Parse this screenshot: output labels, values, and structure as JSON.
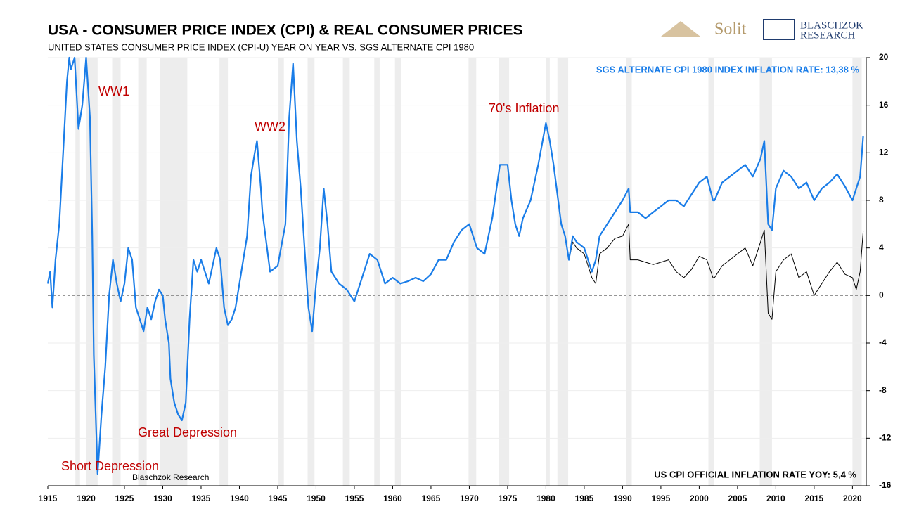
{
  "chart_data": {
    "type": "line",
    "title": "USA - CONSUMER PRICE INDEX (CPI) & REAL CONSUMER PRICES",
    "subtitle": "UNITED STATES CONSUMER PRICE INDEX (CPI-U) YEAR ON YEAR VS. SGS ALTERNATE CPI 1980",
    "source": "Blaschzok Research",
    "logo_texts": [
      "Solit",
      "BLASCHZOK",
      "RESEARCH"
    ],
    "annotations": [
      "WW1",
      "WW2",
      "70's Inflation",
      "Great Depression",
      "Short Depression"
    ],
    "xlim": [
      1915,
      2021.8
    ],
    "xticks": [
      1915,
      1920,
      1925,
      1930,
      1935,
      1940,
      1945,
      1950,
      1955,
      1960,
      1965,
      1970,
      1975,
      1980,
      1985,
      1990,
      1995,
      2000,
      2005,
      2010,
      2015,
      2020
    ],
    "ylim": [
      -16,
      20
    ],
    "yticks": [
      -16,
      -12,
      -8,
      -4,
      0,
      4,
      8,
      12,
      16,
      20
    ],
    "grid": true,
    "recessions": [
      [
        1918.6,
        1919.2
      ],
      [
        1920.0,
        1921.5
      ],
      [
        1923.4,
        1924.5
      ],
      [
        1926.8,
        1927.9
      ],
      [
        1929.6,
        1933.2
      ],
      [
        1937.4,
        1938.5
      ],
      [
        1945.1,
        1945.8
      ],
      [
        1948.9,
        1949.8
      ],
      [
        1953.5,
        1954.4
      ],
      [
        1957.6,
        1958.3
      ],
      [
        1960.3,
        1961.1
      ],
      [
        1969.9,
        1970.9
      ],
      [
        1973.9,
        1975.2
      ],
      [
        1980.0,
        1980.5
      ],
      [
        1981.5,
        1982.9
      ],
      [
        1990.5,
        1991.2
      ],
      [
        2001.2,
        2001.9
      ],
      [
        2007.9,
        2009.5
      ],
      [
        2020.0,
        2021.2
      ]
    ],
    "series": [
      {
        "name": "SGS ALTERNATE CPI 1980 INDEX INFLATION RATE: 13,38 %",
        "color": "#1a7de8",
        "x": [
          1915.0,
          1915.3,
          1915.6,
          1916,
          1916.5,
          1917,
          1917.5,
          1917.8,
          1918,
          1918.5,
          1919,
          1919.5,
          1920,
          1920.5,
          1920.8,
          1921,
          1921.5,
          1921.8,
          1922,
          1922.5,
          1923,
          1923.5,
          1924,
          1924.5,
          1925,
          1925.5,
          1926,
          1926.5,
          1927,
          1927.5,
          1928,
          1928.5,
          1929,
          1929.5,
          1930,
          1930.3,
          1930.8,
          1931,
          1931.5,
          1932,
          1932.5,
          1933,
          1933.5,
          1934,
          1934.5,
          1935,
          1936,
          1937,
          1937.5,
          1938,
          1938.5,
          1939,
          1939.5,
          1940,
          1941,
          1941.5,
          1942,
          1942.3,
          1942.8,
          1943,
          1944,
          1945,
          1946,
          1946.5,
          1947,
          1947.5,
          1948,
          1948.5,
          1949,
          1949.5,
          1950,
          1950.5,
          1951,
          1951.5,
          1952,
          1953,
          1954,
          1955,
          1956,
          1957,
          1958,
          1959,
          1960,
          1961,
          1962,
          1963,
          1964,
          1965,
          1966,
          1967,
          1968,
          1969,
          1970,
          1971,
          1972,
          1973,
          1974,
          1975,
          1975.5,
          1976,
          1976.5,
          1977,
          1978,
          1979,
          1980,
          1980.5,
          1981,
          1982,
          1982.5,
          1983,
          1983.5,
          1984,
          1985,
          1986,
          1986.5,
          1987,
          1988,
          1989,
          1990,
          1990.8,
          1991,
          1992,
          1993,
          1994,
          1995,
          1996,
          1997,
          1998,
          1999,
          2000,
          2001,
          2001.8,
          2002,
          2003,
          2004,
          2005,
          2006,
          2007,
          2008,
          2008.5,
          2009,
          2009.5,
          2010,
          2011,
          2012,
          2013,
          2014,
          2015,
          2016,
          2017,
          2018,
          2019,
          2020,
          2020.5,
          2021,
          2021.4
        ],
        "values": [
          1,
          2,
          -1,
          3,
          6,
          12,
          18,
          20,
          19,
          20,
          14,
          16,
          20,
          15,
          5,
          -5,
          -15,
          -12,
          -10,
          -6,
          0,
          3,
          1,
          -0.5,
          1,
          4,
          3,
          -1,
          -2,
          -3,
          -1,
          -2,
          -0.5,
          0.5,
          0,
          -2,
          -4,
          -7,
          -9,
          -10,
          -10.5,
          -9,
          -2,
          3,
          2,
          3,
          1,
          4,
          3,
          -1,
          -2.5,
          -2,
          -1,
          1,
          5,
          10,
          12,
          13,
          9,
          7,
          2,
          2.5,
          6,
          15,
          19.5,
          13,
          9,
          4,
          -1,
          -3,
          1,
          4,
          9,
          6,
          2,
          1,
          0.5,
          -0.5,
          1.5,
          3.5,
          3,
          1,
          1.5,
          1,
          1.2,
          1.5,
          1.2,
          1.8,
          3,
          3,
          4.5,
          5.5,
          6,
          4,
          3.5,
          6.5,
          11,
          11,
          8,
          6,
          5,
          6.5,
          8,
          11,
          14.5,
          13,
          11,
          6,
          5,
          3,
          5,
          4.5,
          4,
          2,
          3,
          5,
          6,
          7,
          8,
          9,
          7,
          7,
          6.5,
          7,
          7.5,
          8,
          8,
          7.5,
          8.5,
          9.5,
          10,
          8,
          8,
          9.5,
          10,
          10.5,
          11,
          10,
          11.5,
          13,
          6,
          5.5,
          9,
          10.5,
          10,
          9,
          9.5,
          8,
          9,
          9.5,
          10.2,
          9.2,
          8,
          9,
          10,
          13.38
        ]
      },
      {
        "name": "US CPI OFFICIAL INFLATION RATE YOY: 5,4 %",
        "color": "#000000",
        "x": [
          1983,
          1983.5,
          1984,
          1985,
          1986,
          1986.5,
          1987,
          1988,
          1989,
          1990,
          1990.8,
          1991,
          1992,
          1993,
          1994,
          1995,
          1996,
          1997,
          1998,
          1999,
          2000,
          2001,
          2001.8,
          2002,
          2003,
          2004,
          2005,
          2006,
          2007,
          2008,
          2008.5,
          2009,
          2009.5,
          2010,
          2011,
          2012,
          2013,
          2014,
          2015,
          2016,
          2017,
          2018,
          2019,
          2020,
          2020.5,
          2021,
          2021.4
        ],
        "values": [
          3,
          4.5,
          4,
          3.5,
          1.5,
          1,
          3.5,
          4,
          4.8,
          5,
          6,
          3,
          3,
          2.8,
          2.6,
          2.8,
          3,
          2,
          1.5,
          2.2,
          3.3,
          3,
          1.5,
          1.5,
          2.5,
          3,
          3.5,
          4,
          2.5,
          4.5,
          5.5,
          -1.5,
          -2,
          2,
          3,
          3.5,
          1.5,
          2,
          0,
          1,
          2,
          2.8,
          1.8,
          1.5,
          0.5,
          2,
          5.4
        ]
      }
    ]
  }
}
